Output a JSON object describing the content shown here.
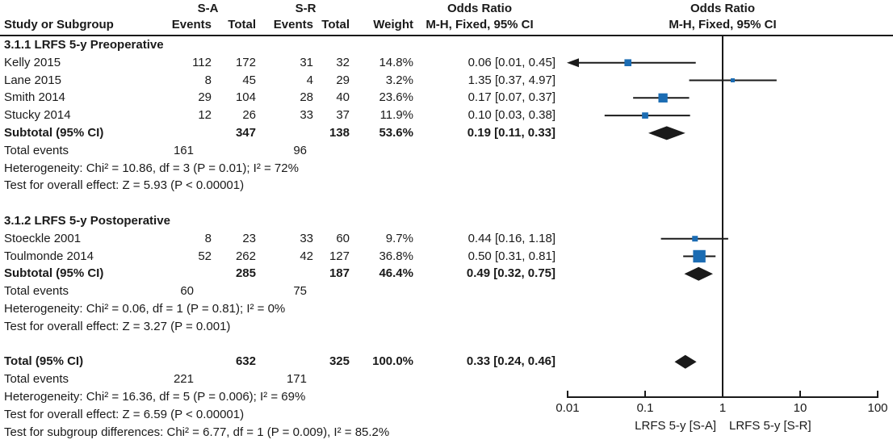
{
  "header": {
    "group_a": "S-A",
    "group_b": "S-R",
    "study": "Study or Subgroup",
    "events": "Events",
    "total": "Total",
    "weight": "Weight",
    "or_title": "Odds Ratio",
    "or_method": "M-H, Fixed, 95% CI"
  },
  "colors": {
    "square": "#1b6cb3",
    "ink": "#1a1a1a"
  },
  "chart_data": {
    "type": "forest",
    "effect_measure": "Odds Ratio, M-H, Fixed, 95% CI",
    "x_scale": "log",
    "x_ticks": [
      0.01,
      0.1,
      1,
      10,
      100
    ],
    "x_range": [
      0.01,
      100
    ],
    "favors_left": "LRFS 5-y [S-A]",
    "favors_right": "LRFS 5-y [S-R]",
    "groups": [
      {
        "label": "3.1.1 LRFS 5-y Preoperative",
        "studies": [
          {
            "study": "Kelly 2015",
            "events_a": 112,
            "total_a": 172,
            "events_r": 31,
            "total_r": 32,
            "weight": "14.8%",
            "weight_pct": 14.8,
            "or": 0.06,
            "ci_low": 0.01,
            "ci_high": 0.45,
            "or_text": "0.06 [0.01, 0.45]",
            "arrow_low": true
          },
          {
            "study": "Lane 2015",
            "events_a": 8,
            "total_a": 45,
            "events_r": 4,
            "total_r": 29,
            "weight": "3.2%",
            "weight_pct": 3.2,
            "or": 1.35,
            "ci_low": 0.37,
            "ci_high": 4.97,
            "or_text": "1.35 [0.37, 4.97]"
          },
          {
            "study": "Smith 2014",
            "events_a": 29,
            "total_a": 104,
            "events_r": 28,
            "total_r": 40,
            "weight": "23.6%",
            "weight_pct": 23.6,
            "or": 0.17,
            "ci_low": 0.07,
            "ci_high": 0.37,
            "or_text": "0.17 [0.07, 0.37]"
          },
          {
            "study": "Stucky 2014",
            "events_a": 12,
            "total_a": 26,
            "events_r": 33,
            "total_r": 37,
            "weight": "11.9%",
            "weight_pct": 11.9,
            "or": 0.1,
            "ci_low": 0.03,
            "ci_high": 0.38,
            "or_text": "0.10 [0.03, 0.38]"
          }
        ],
        "subtotal": {
          "label": "Subtotal (95% CI)",
          "total_a": 347,
          "total_r": 138,
          "weight": "53.6%",
          "or": 0.19,
          "ci_low": 0.11,
          "ci_high": 0.33,
          "or_text": "0.19 [0.11, 0.33]"
        },
        "total_events": {
          "label": "Total events",
          "a": 161,
          "r": 96
        },
        "heterogeneity": "Heterogeneity: Chi² = 10.86, df = 3 (P = 0.01); I² = 72%",
        "overall_effect": "Test for overall effect: Z = 5.93 (P < 0.00001)"
      },
      {
        "label": "3.1.2 LRFS 5-y Postoperative",
        "studies": [
          {
            "study": "Stoeckle 2001",
            "events_a": 8,
            "total_a": 23,
            "events_r": 33,
            "total_r": 60,
            "weight": "9.7%",
            "weight_pct": 9.7,
            "or": 0.44,
            "ci_low": 0.16,
            "ci_high": 1.18,
            "or_text": "0.44 [0.16, 1.18]"
          },
          {
            "study": "Toulmonde 2014",
            "events_a": 52,
            "total_a": 262,
            "events_r": 42,
            "total_r": 127,
            "weight": "36.8%",
            "weight_pct": 36.8,
            "or": 0.5,
            "ci_low": 0.31,
            "ci_high": 0.81,
            "or_text": "0.50 [0.31, 0.81]"
          }
        ],
        "subtotal": {
          "label": "Subtotal (95% CI)",
          "total_a": 285,
          "total_r": 187,
          "weight": "46.4%",
          "or": 0.49,
          "ci_low": 0.32,
          "ci_high": 0.75,
          "or_text": "0.49 [0.32, 0.75]"
        },
        "total_events": {
          "label": "Total events",
          "a": 60,
          "r": 75
        },
        "heterogeneity": "Heterogeneity: Chi² = 0.06, df = 1 (P = 0.81); I² = 0%",
        "overall_effect": "Test for overall effect: Z = 3.27 (P = 0.001)"
      }
    ],
    "total": {
      "label": "Total (95% CI)",
      "total_a": 632,
      "total_r": 325,
      "weight": "100.0%",
      "or": 0.33,
      "ci_low": 0.24,
      "ci_high": 0.46,
      "or_text": "0.33 [0.24, 0.46]"
    },
    "total_events": {
      "label": "Total events",
      "a": 221,
      "r": 171
    },
    "heterogeneity": "Heterogeneity: Chi² = 16.36, df = 5 (P = 0.006); I² = 69%",
    "overall_effect": "Test for overall effect: Z = 6.59 (P < 0.00001)",
    "subgroup_diff": "Test for subgroup differences: Chi² = 6.77, df = 1 (P = 0.009), I² = 85.2%"
  }
}
